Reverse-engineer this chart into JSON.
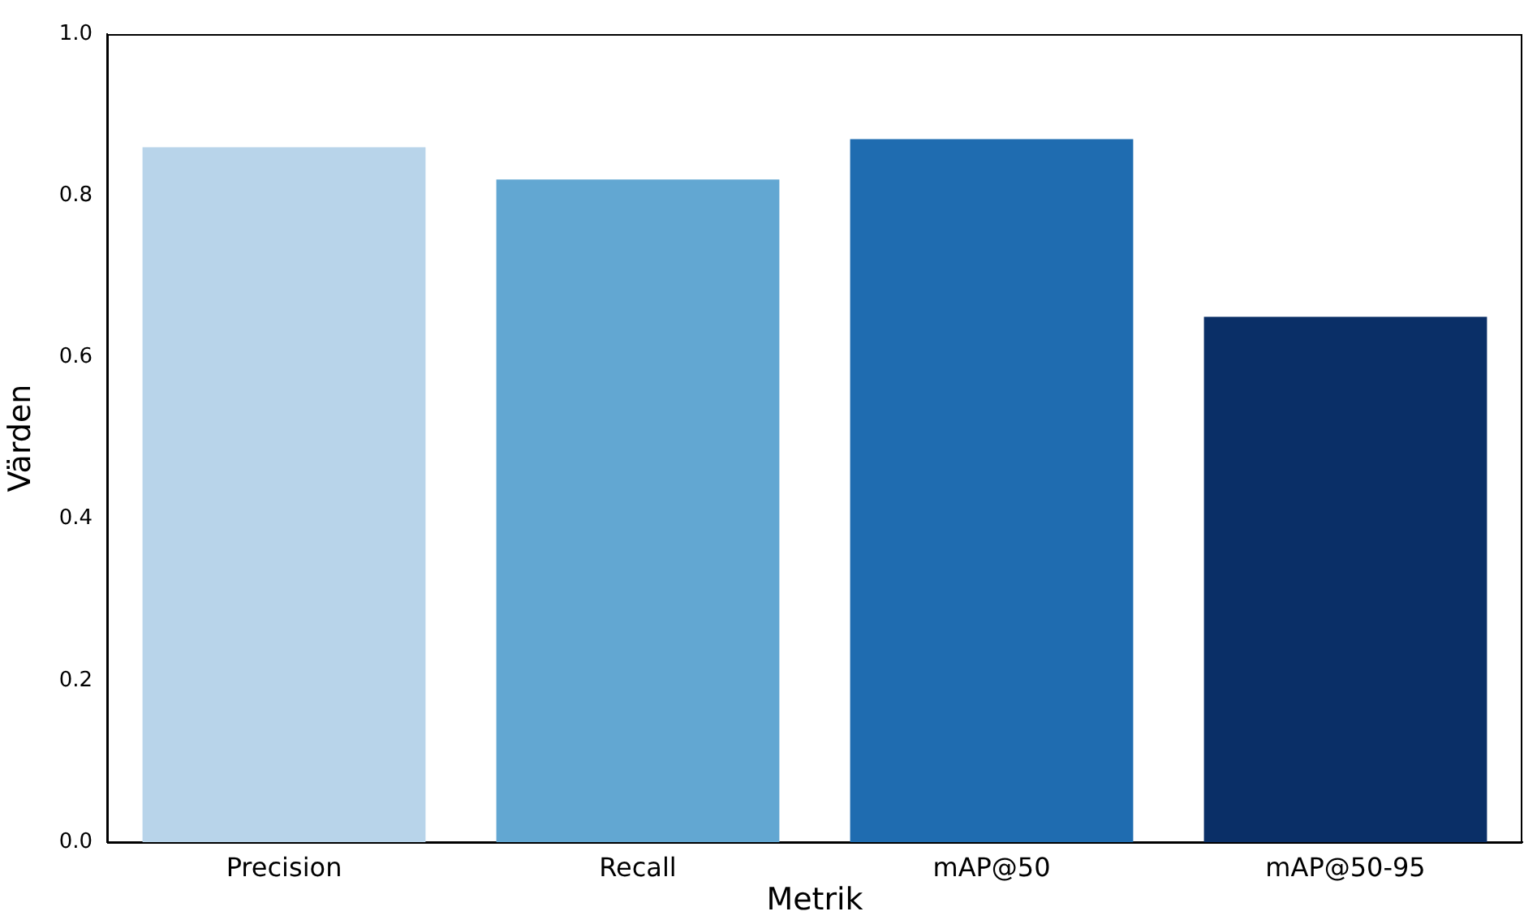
{
  "chart_data": {
    "type": "bar",
    "xlabel": "Metrik",
    "ylabel": "Värden",
    "categories": [
      "Precision",
      "Recall",
      "mAP@50",
      "mAP@50-95"
    ],
    "values": [
      0.86,
      0.82,
      0.87,
      0.65
    ],
    "colors": [
      "#b8d4ea",
      "#62a7d2",
      "#1f6cb0",
      "#0a2f67"
    ],
    "ylim": [
      0,
      1
    ],
    "yticks": [
      {
        "value": 0,
        "label": "0.0"
      },
      {
        "value": 0.2,
        "label": "0.2"
      },
      {
        "value": 0.4,
        "label": "0.4"
      },
      {
        "value": 0.6,
        "label": "0.6"
      },
      {
        "value": 0.8,
        "label": "0.8"
      },
      {
        "value": 1,
        "label": "1.0"
      }
    ],
    "grid": false,
    "legend": false
  }
}
